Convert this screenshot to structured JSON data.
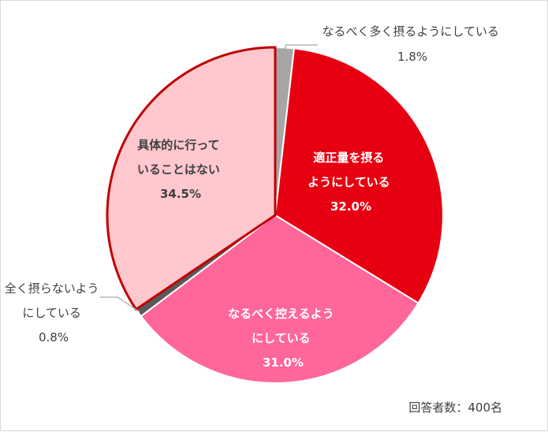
{
  "chart_data": {
    "type": "pie",
    "title": "",
    "note": "回答者数：400名",
    "slices": [
      {
        "label_lines": [
          "なるべく多く摂るようにしている"
        ],
        "value": 1.8,
        "value_label": "1.8%",
        "color": "#a6a6a6"
      },
      {
        "label_lines": [
          "適正量を摂る",
          "ようにしている"
        ],
        "value": 32.0,
        "value_label": "32.0%",
        "color": "#e60012"
      },
      {
        "label_lines": [
          "なるべく控えるよう",
          "にしている"
        ],
        "value": 31.0,
        "value_label": "31.0%",
        "color": "#ff6699"
      },
      {
        "label_lines": [
          "全く摂らないよう",
          "にしている"
        ],
        "value": 0.8,
        "value_label": "0.8%",
        "color": "#595959"
      },
      {
        "label_lines": [
          "具体的に行って",
          "いることはない"
        ],
        "value": 34.5,
        "value_label": "34.5%",
        "color": "#ffc7ce",
        "border": "#c00000"
      }
    ]
  }
}
